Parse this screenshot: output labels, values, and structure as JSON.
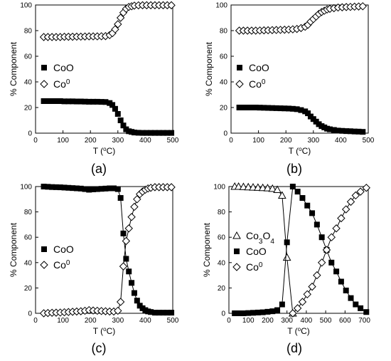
{
  "chart_data": [
    {
      "panel": "(a)",
      "type": "scatter",
      "xlabel": "T (°C)",
      "ylabel": "% Component",
      "xlim": [
        0,
        500
      ],
      "ylim": [
        0,
        100
      ],
      "xticks": [
        0,
        100,
        200,
        300,
        400,
        500
      ],
      "yticks": [
        0,
        20,
        40,
        60,
        80,
        100
      ],
      "legend_position": "middle-left",
      "series": [
        {
          "name": "CoO",
          "marker": "filled-square",
          "line": false,
          "x": [
            30,
            45,
            60,
            75,
            90,
            105,
            120,
            135,
            150,
            165,
            180,
            195,
            210,
            225,
            240,
            255,
            270,
            280,
            290,
            300,
            310,
            320,
            330,
            340,
            350,
            360,
            375,
            390,
            405,
            420,
            435,
            450,
            465,
            480,
            495
          ],
          "y": [
            25,
            25,
            25,
            25,
            25,
            24.8,
            24.8,
            24.8,
            24.7,
            24.7,
            24.6,
            24.5,
            24.5,
            24.5,
            24.4,
            24.3,
            23.5,
            22,
            19,
            15,
            10,
            6,
            3,
            1.5,
            1,
            0.5,
            0.3,
            0.2,
            0.2,
            0.2,
            0.2,
            0.2,
            0.2,
            0.2,
            0.2
          ]
        },
        {
          "name": "Co0",
          "marker": "open-diamond",
          "line": false,
          "x": [
            30,
            45,
            60,
            75,
            90,
            105,
            120,
            135,
            150,
            165,
            180,
            195,
            210,
            225,
            240,
            255,
            270,
            280,
            290,
            300,
            310,
            320,
            330,
            340,
            350,
            360,
            375,
            390,
            405,
            420,
            435,
            450,
            465,
            480,
            495
          ],
          "y": [
            75,
            75,
            75,
            75,
            75,
            75.2,
            75.2,
            75.2,
            75.3,
            75.3,
            75.4,
            75.5,
            75.5,
            75.5,
            75.6,
            75.7,
            76.5,
            78,
            81,
            85,
            90,
            94,
            97,
            98.5,
            99,
            99.5,
            99.7,
            99.8,
            99.8,
            99.8,
            99.8,
            99.8,
            99.8,
            99.8,
            99.8
          ]
        }
      ]
    },
    {
      "panel": "(b)",
      "type": "scatter",
      "xlabel": "T (°C)",
      "ylabel": "% Component",
      "xlim": [
        0,
        500
      ],
      "ylim": [
        0,
        100
      ],
      "xticks": [
        0,
        100,
        200,
        300,
        400,
        500
      ],
      "yticks": [
        0,
        20,
        40,
        60,
        80,
        100
      ],
      "legend_position": "middle-left",
      "series": [
        {
          "name": "CoO",
          "marker": "filled-square",
          "line": false,
          "x": [
            30,
            45,
            60,
            75,
            90,
            105,
            120,
            135,
            150,
            165,
            180,
            195,
            210,
            225,
            240,
            255,
            270,
            280,
            290,
            300,
            310,
            320,
            330,
            340,
            350,
            360,
            375,
            390,
            405,
            420,
            435,
            450,
            465,
            480
          ],
          "y": [
            20,
            20,
            20,
            20,
            20,
            19.9,
            19.8,
            19.7,
            19.6,
            19.5,
            19.4,
            19.3,
            19.2,
            19,
            18.7,
            18,
            17,
            15.5,
            13,
            11,
            9,
            7,
            5.5,
            4.5,
            3.5,
            3,
            2.5,
            2,
            1.8,
            1.6,
            1.5,
            1.3,
            1.2,
            1
          ]
        },
        {
          "name": "Co0",
          "marker": "open-diamond",
          "line": false,
          "x": [
            30,
            45,
            60,
            75,
            90,
            105,
            120,
            135,
            150,
            165,
            180,
            195,
            210,
            225,
            240,
            255,
            270,
            280,
            290,
            300,
            310,
            320,
            330,
            340,
            350,
            360,
            375,
            390,
            405,
            420,
            435,
            450,
            465,
            480
          ],
          "y": [
            80,
            80,
            80,
            80,
            80,
            80.1,
            80.2,
            80.3,
            80.4,
            80.5,
            80.6,
            80.7,
            80.8,
            81,
            81.3,
            82,
            83,
            84.5,
            87,
            89,
            91,
            93,
            94.5,
            95.5,
            96.5,
            97,
            97.5,
            98,
            98.2,
            98.4,
            98.5,
            98.7,
            98.8,
            99
          ]
        }
      ]
    },
    {
      "panel": "(c)",
      "type": "line",
      "xlabel": "T (°C)",
      "ylabel": "% Component",
      "xlim": [
        0,
        500
      ],
      "ylim": [
        0,
        100
      ],
      "xticks": [
        0,
        100,
        200,
        300,
        400,
        500
      ],
      "yticks": [
        0,
        20,
        40,
        60,
        80,
        100
      ],
      "legend_position": "middle-left",
      "series": [
        {
          "name": "CoO",
          "marker": "filled-square",
          "line": true,
          "x": [
            30,
            45,
            60,
            75,
            90,
            105,
            120,
            135,
            150,
            165,
            180,
            195,
            210,
            225,
            240,
            255,
            270,
            285,
            300,
            310,
            320,
            330,
            340,
            350,
            360,
            370,
            380,
            390,
            400,
            410,
            420,
            435,
            450,
            465,
            480,
            495
          ],
          "y": [
            100,
            99.8,
            99.6,
            99.5,
            99.4,
            99.2,
            99,
            98.8,
            98.6,
            98.4,
            98,
            97.5,
            97.8,
            98,
            98.2,
            98.4,
            98.6,
            98.6,
            98,
            91,
            63,
            43,
            33,
            24,
            16,
            10,
            6,
            4,
            2.5,
            1.5,
            1,
            0.5,
            0.5,
            0.5,
            0.5,
            0.5
          ]
        },
        {
          "name": "Co0",
          "marker": "open-diamond",
          "line": true,
          "x": [
            30,
            45,
            60,
            75,
            90,
            105,
            120,
            135,
            150,
            165,
            180,
            195,
            210,
            225,
            240,
            255,
            270,
            285,
            300,
            310,
            320,
            330,
            340,
            350,
            360,
            370,
            380,
            390,
            400,
            410,
            420,
            435,
            450,
            465,
            480,
            495
          ],
          "y": [
            0,
            0.2,
            0.4,
            0.5,
            0.6,
            0.8,
            1,
            1.2,
            1.4,
            1.6,
            2,
            2.5,
            2.2,
            2,
            1.8,
            1.6,
            1.4,
            1.4,
            2,
            9,
            37,
            57,
            67,
            76,
            84,
            90,
            94,
            96,
            97.5,
            98.5,
            99,
            99.5,
            99.5,
            99.5,
            99.5,
            99.5
          ]
        }
      ]
    },
    {
      "panel": "(d)",
      "type": "line",
      "xlabel": "T (°C)",
      "ylabel": "% Component",
      "xlim": [
        0,
        720
      ],
      "ylim": [
        0,
        100
      ],
      "xticks": [
        0,
        100,
        200,
        300,
        400,
        500,
        600,
        700
      ],
      "yticks": [
        0,
        20,
        40,
        60,
        80,
        100
      ],
      "legend_position": "middle-left",
      "series": [
        {
          "name": "Co3O4",
          "marker": "open-triangle",
          "line": true,
          "x": [
            30,
            50,
            75,
            100,
            125,
            150,
            175,
            200,
            225,
            250,
            275,
            300,
            330
          ],
          "y": [
            100,
            100,
            99.8,
            99.6,
            99.4,
            99.2,
            99,
            98.8,
            98.4,
            97.5,
            93,
            44,
            0
          ]
        },
        {
          "name": "CoO",
          "marker": "filled-square",
          "line": true,
          "x": [
            30,
            50,
            75,
            100,
            125,
            150,
            175,
            200,
            225,
            250,
            275,
            300,
            330,
            355,
            380,
            405,
            430,
            455,
            480,
            505,
            530,
            555,
            580,
            605,
            630,
            655,
            680,
            710
          ],
          "y": [
            0,
            0,
            0,
            0.2,
            0.4,
            0.6,
            0.8,
            1.2,
            1.6,
            2.5,
            7,
            56,
            100,
            96,
            91,
            85,
            79,
            70,
            60,
            50,
            40,
            33,
            25,
            18,
            12,
            7,
            4,
            1
          ]
        },
        {
          "name": "Co0",
          "marker": "open-diamond",
          "line": true,
          "x": [
            330,
            355,
            380,
            405,
            430,
            455,
            480,
            505,
            530,
            555,
            580,
            605,
            630,
            655,
            680,
            710
          ],
          "y": [
            0,
            4,
            9,
            15,
            21,
            30,
            40,
            50,
            60,
            67,
            75,
            82,
            88,
            93,
            96,
            99
          ]
        }
      ]
    }
  ],
  "figure": {
    "panel_labels": [
      "(a)",
      "(b)",
      "(c)",
      "(d)"
    ],
    "xlabel_text": "T (",
    "xlabel_degree": "o",
    "xlabel_unit": "C)",
    "ylabel_text": "% Component",
    "legend_labels": {
      "CoO": "CoO",
      "Co0_base": "Co",
      "Co0_sup": "0",
      "Co3O4_a": "Co",
      "Co3O4_sub3": "3",
      "Co3O4_mid": "O",
      "Co3O4_sub4": "4"
    },
    "colors": {
      "ink": "#000000",
      "background": "#ffffff"
    }
  }
}
